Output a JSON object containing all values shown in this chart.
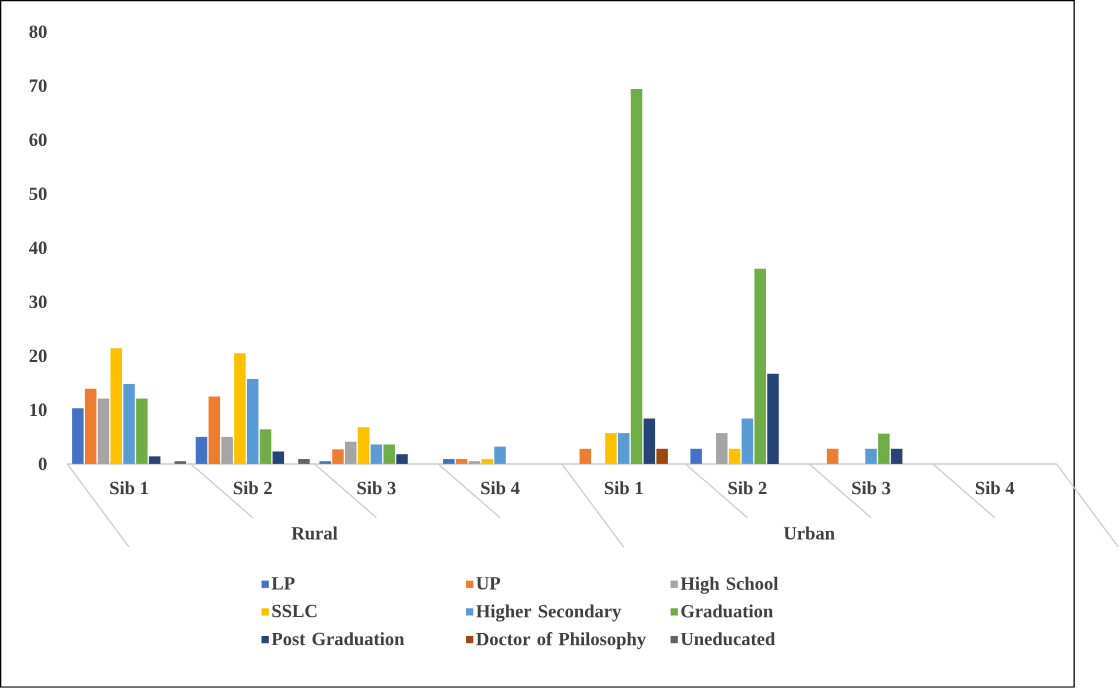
{
  "chart_data": {
    "type": "bar",
    "categories": [
      "Sib 1",
      "Sib 2",
      "Sib 3",
      "Sib 4",
      "Sib 1",
      "Sib 2",
      "Sib 3",
      "Sib 4"
    ],
    "series": [
      {
        "name": "LP",
        "color": "#4472c4",
        "values": [
          10.3,
          5.0,
          0.5,
          0.9,
          0,
          2.8,
          0,
          0
        ]
      },
      {
        "name": "UP",
        "color": "#ed7d31",
        "values": [
          13.9,
          12.5,
          2.7,
          0.9,
          2.8,
          0,
          2.8,
          0
        ]
      },
      {
        "name": "High School",
        "color": "#a5a5a5",
        "values": [
          12.1,
          5.0,
          4.1,
          0.5,
          0,
          5.7,
          0,
          0
        ]
      },
      {
        "name": "SSLC",
        "color": "#ffc000",
        "values": [
          21.4,
          20.5,
          6.8,
          0.9,
          5.7,
          2.8,
          0,
          0
        ]
      },
      {
        "name": "Higher Secondary",
        "color": "#5b9bd5",
        "values": [
          14.8,
          15.7,
          3.6,
          3.2,
          5.7,
          8.4,
          2.8,
          0
        ]
      },
      {
        "name": "Graduation",
        "color": "#70ad47",
        "values": [
          12.1,
          6.4,
          3.6,
          0,
          69.4,
          36.1,
          5.6,
          0
        ]
      },
      {
        "name": "Post Graduation",
        "color": "#264478",
        "values": [
          1.4,
          2.3,
          1.8,
          0,
          8.4,
          16.7,
          2.8,
          0
        ]
      },
      {
        "name": "Doctor of Philosophy",
        "color": "#9e480e",
        "values": [
          0,
          0,
          0,
          0,
          2.8,
          0,
          0,
          0
        ]
      },
      {
        "name": "Uneducated",
        "color": "#636363",
        "values": [
          0.5,
          0.9,
          0,
          0,
          0,
          0,
          0,
          0
        ]
      }
    ],
    "annotations": [
      "Rural",
      "Urban"
    ],
    "ylim": [
      0,
      80
    ],
    "yticks": [
      0,
      10,
      20,
      30,
      40,
      50,
      60,
      70,
      80
    ],
    "legend": "bottom"
  }
}
